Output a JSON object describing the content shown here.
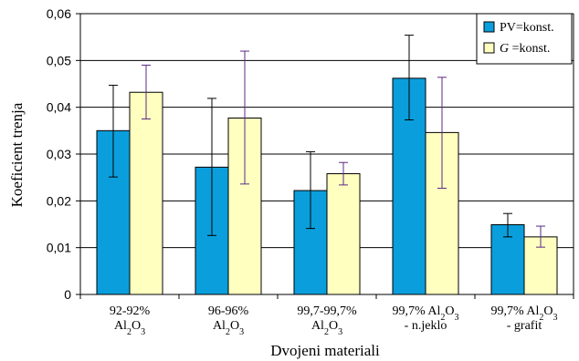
{
  "chart_data": {
    "type": "bar",
    "title": "",
    "xlabel": "Dvojeni materiali",
    "ylabel": "Koeficient trenja",
    "ylim": [
      0,
      0.06
    ],
    "y_ticks": [
      "0",
      "0,01",
      "0,02",
      "0,03",
      "0,04",
      "0,05",
      "0,06"
    ],
    "grid": "horizontal",
    "legend_position": "top-right",
    "categories": [
      {
        "line1": "92-92%",
        "line2": "Al2O3"
      },
      {
        "line1": "96-96%",
        "line2": "Al2O3"
      },
      {
        "line1": "99,7-99,7%",
        "line2": "Al2O3"
      },
      {
        "line1": "99,7% Al2O3",
        "line2": "- n.jeklo"
      },
      {
        "line1": "99,7% Al2O3",
        "line2": "- grafit"
      }
    ],
    "series": [
      {
        "name": "PV=konst.",
        "name_italic_part": "",
        "name_rest": "PV=konst.",
        "color": "#0A9FDC",
        "errorbar_color": "#000000",
        "values": [
          0.035,
          0.0272,
          0.0222,
          0.0462,
          0.0149
        ],
        "err_low": [
          0.0251,
          0.0126,
          0.0141,
          0.0373,
          0.0123
        ],
        "err_high": [
          0.0447,
          0.0419,
          0.0305,
          0.0554,
          0.0173
        ]
      },
      {
        "name": "G =konst.",
        "name_italic_part": "G",
        "name_rest": " =konst.",
        "color": "#FFFFC0",
        "errorbar_color": "#5B2A86",
        "values": [
          0.0432,
          0.0377,
          0.0258,
          0.0346,
          0.0123
        ],
        "err_low": [
          0.0375,
          0.0236,
          0.0234,
          0.0227,
          0.0101
        ],
        "err_high": [
          0.049,
          0.052,
          0.0282,
          0.0464,
          0.0146
        ]
      }
    ]
  }
}
